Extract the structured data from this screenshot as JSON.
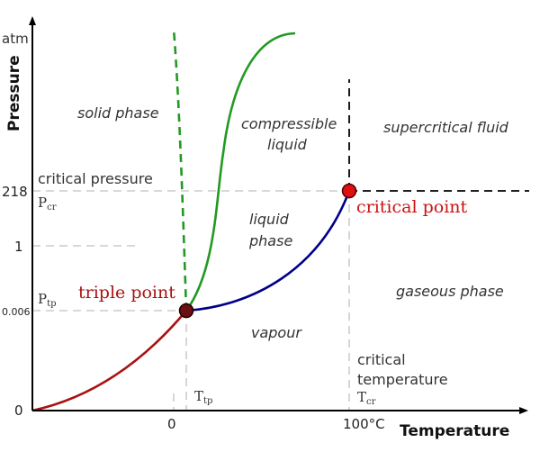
{
  "axes": {
    "y_title": "Pressure",
    "y_unit": "atm",
    "x_title": "Temperature",
    "y_ticks": [
      "218",
      "1",
      "0.006",
      "0"
    ],
    "x_ticks": [
      "0",
      "100°C"
    ]
  },
  "regions": {
    "solid": "solid phase",
    "compressible_1": "compressible",
    "compressible_2": "liquid",
    "supercritical": "supercritical fluid",
    "liquid_1": "liquid",
    "liquid_2": "phase",
    "gaseous": "gaseous phase",
    "vapour": "vapour"
  },
  "labels": {
    "critical_pressure": "critical pressure",
    "p_cr_main": "P",
    "p_cr_sub": "cr",
    "p_tp_main": "P",
    "p_tp_sub": "tp",
    "t_tp_main": "T",
    "t_tp_sub": "tp",
    "critical_temp_1": "critical",
    "critical_temp_2": "temperature",
    "t_cr_main": "T",
    "t_cr_sub": "cr"
  },
  "points": {
    "triple": "triple point",
    "critical": "critical point"
  },
  "colors": {
    "sublimation_curve": "#aa1111",
    "vaporization_curve": "#000088",
    "melting_curve": "#229922",
    "point_label": "#cc1111",
    "triple_marker": "#6a1010",
    "critical_marker": "#dd1111",
    "guide_line": "#cccccc",
    "axis": "#000000"
  }
}
